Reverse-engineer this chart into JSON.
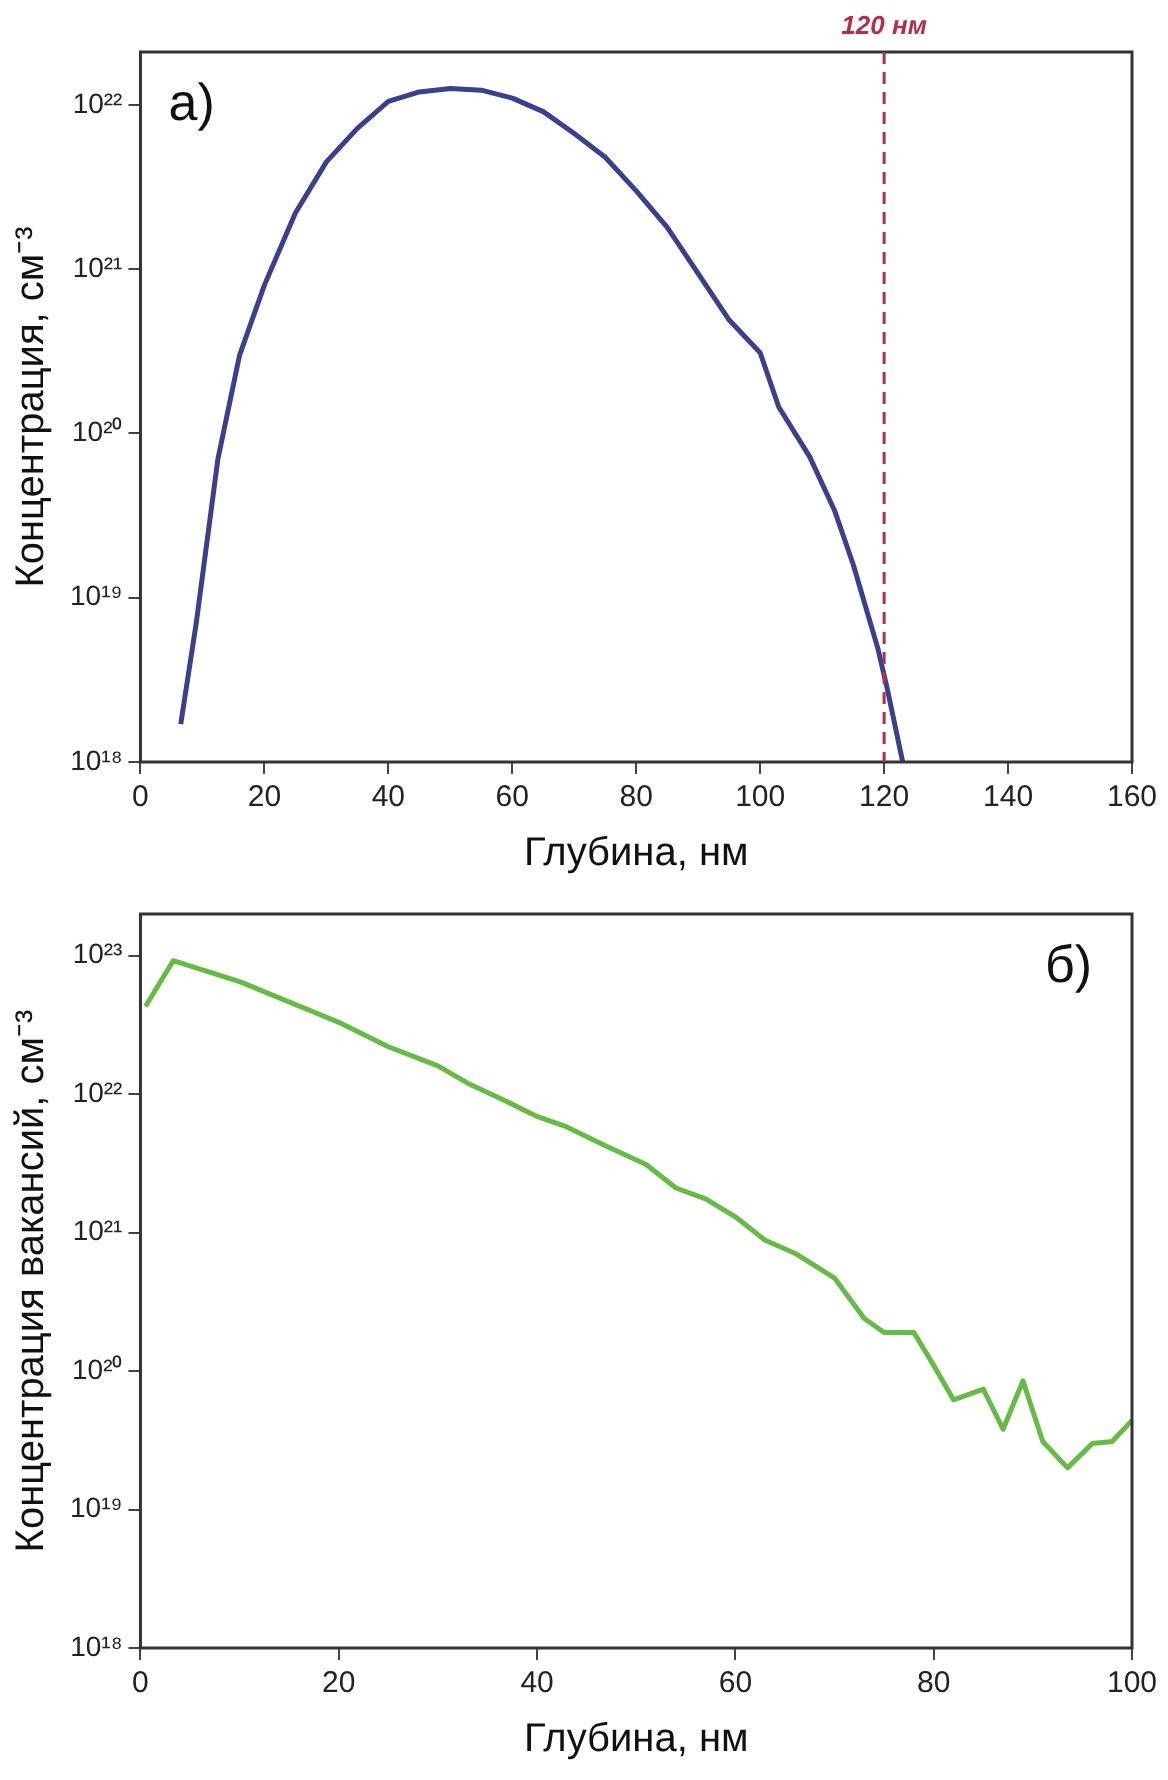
{
  "chart_data": [
    {
      "type": "line",
      "xlabel": "Глубина, нм",
      "ylabel": "Концентрация, см⁻³",
      "log": "y",
      "grid": false,
      "marker": "none",
      "annotations": [
        "a)"
      ],
      "xlim": [
        0,
        160
      ],
      "xticks": [
        0,
        20,
        40,
        60,
        80,
        100,
        120,
        140,
        160
      ],
      "ylim": [
        1e+18,
        2.1e+22
      ],
      "yticks": [
        {
          "value": 1e+18,
          "label": "10¹⁸"
        },
        {
          "value": 1e+19,
          "label": "10¹⁹"
        },
        {
          "value": 1e+20,
          "label": "10²⁰"
        },
        {
          "value": 1e+21,
          "label": "10²¹"
        },
        {
          "value": 1e+22,
          "label": "10²²"
        }
      ],
      "ref_lines": [
        {
          "axis": "x",
          "value": 120,
          "label": "120 нм",
          "color": "#b0304a",
          "line_style": "dashed"
        }
      ],
      "series": [
        {
          "color": "#3a3f8f",
          "x": [
            6.5,
            9,
            12.5,
            16,
            20,
            25,
            30,
            35,
            40,
            45,
            50,
            55,
            60,
            65,
            70,
            75,
            80,
            85,
            90,
            95,
            100,
            103,
            108,
            112,
            115,
            119,
            120.5,
            123
          ],
          "values": [
            1.7e+18,
            7e+18,
            7e+19,
            3e+20,
            8e+20,
            2.2e+21,
            4.5e+21,
            7.2e+21,
            1.05e+22,
            1.2e+22,
            1.26e+22,
            1.23e+22,
            1.1e+22,
            9.1e+21,
            6.7e+21,
            4.8e+21,
            3e+21,
            1.8e+21,
            9.4e+20,
            4.9e+20,
            3.1e+20,
            1.45e+20,
            7.2e+19,
            3.4e+19,
            1.6e+19,
            4.9e+18,
            2.8e+18,
            1e+18
          ]
        }
      ]
    },
    {
      "type": "line",
      "xlabel": "Глубина, нм",
      "ylabel": "Концентрация вакансий, см⁻³",
      "log": "y",
      "grid": false,
      "marker": "none",
      "annotations": [
        "б)"
      ],
      "xlim": [
        0,
        100
      ],
      "xticks": [
        0,
        20,
        40,
        60,
        80,
        100
      ],
      "ylim": [
        1e+18,
        2e+23
      ],
      "yticks": [
        {
          "value": 1e+18,
          "label": "10¹⁸"
        },
        {
          "value": 1e+19,
          "label": "10¹⁹"
        },
        {
          "value": 1e+20,
          "label": "10²⁰"
        },
        {
          "value": 1e+21,
          "label": "10²¹"
        },
        {
          "value": 1e+22,
          "label": "10²²"
        },
        {
          "value": 1e+23,
          "label": "10²³"
        }
      ],
      "series": [
        {
          "color": "#66bb44",
          "x": [
            0.5,
            3.3,
            10,
            20,
            25,
            30,
            33,
            37,
            40,
            43,
            47,
            51,
            54,
            57,
            60,
            63,
            66,
            70,
            73,
            75,
            78,
            80,
            82,
            85,
            87,
            89,
            91,
            93.5,
            96,
            98,
            100
          ],
          "values": [
            4.3e+22,
            9.2e+22,
            6.5e+22,
            3.3e+22,
            2.2e+22,
            1.6e+22,
            1.2e+22,
            8.8e+21,
            6.9e+21,
            5.8e+21,
            4.2e+21,
            3.1e+21,
            2.1e+21,
            1.75e+21,
            1.3e+21,
            8.8e+20,
            7.1e+20,
            4.7e+20,
            2.4e+20,
            1.9e+20,
            1.9e+20,
            1.1e+20,
            6.2e+19,
            7.4e+19,
            3.8e+19,
            8.5e+19,
            3.1e+19,
            2e+19,
            3e+19,
            3.1e+19,
            4.4e+19
          ]
        }
      ]
    }
  ]
}
